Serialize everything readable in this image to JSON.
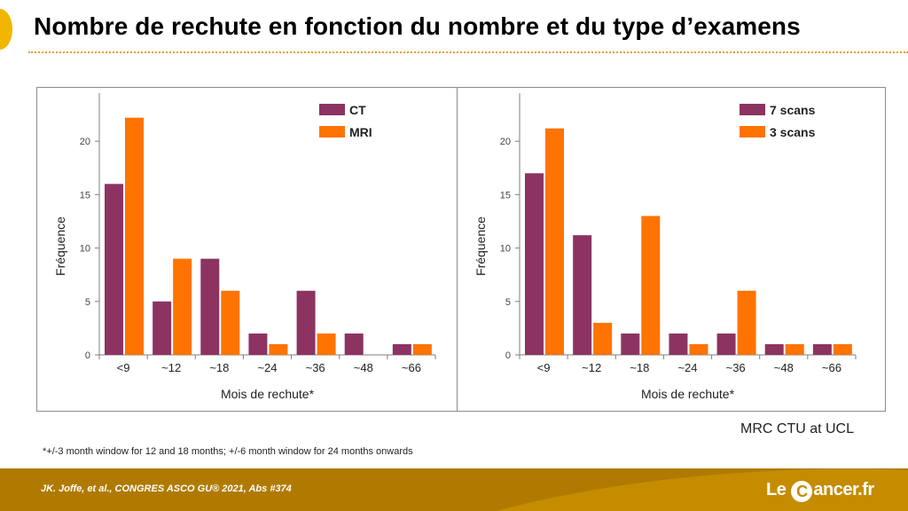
{
  "slide": {
    "title": "Nombre de rechute en fonction du nombre et du type d’examens",
    "source": "MRC CTU at UCL",
    "footnote": "*+/-3 month window for 12 and 18 months; +/-6 month window for 24 months onwards",
    "citation": "JK. Joffe, et al., CONGRES ASCO GU® 2021, Abs #374",
    "brand_prefix": "Le ",
    "brand_c": "C",
    "brand_suffix": "ancer.fr"
  },
  "colors": {
    "accent_yellow": "#f2b600",
    "footer": "#b07a00",
    "series_a": "#8c3361",
    "series_b": "#ff7300"
  },
  "chart_data": [
    {
      "type": "bar",
      "categories": [
        "<9",
        "~12",
        "~18",
        "~24",
        "~36",
        "~48",
        "~66"
      ],
      "series": [
        {
          "name": "CT",
          "values": [
            16,
            5,
            9,
            2,
            6,
            2,
            1
          ],
          "color": "#8c3361"
        },
        {
          "name": "MRI",
          "values": [
            22.2,
            9,
            6,
            1,
            2,
            0,
            1
          ],
          "color": "#ff7300"
        }
      ],
      "xlabel": "Mois de rechute*",
      "ylabel": "Fréquence",
      "ylim": [
        0,
        24
      ],
      "yticks": [
        0,
        5,
        10,
        15,
        20
      ],
      "legend_position": "top-right",
      "grid": false
    },
    {
      "type": "bar",
      "categories": [
        "<9",
        "~12",
        "~18",
        "~24",
        "~36",
        "~48",
        "~66"
      ],
      "series": [
        {
          "name": "7 scans",
          "values": [
            17,
            11.2,
            2,
            2,
            2,
            1,
            1
          ],
          "color": "#8c3361"
        },
        {
          "name": "3 scans",
          "values": [
            21.2,
            3,
            13,
            1,
            6,
            1,
            1
          ],
          "color": "#ff7300"
        }
      ],
      "xlabel": "Mois de rechute*",
      "ylabel": "Fréquence",
      "ylim": [
        0,
        24
      ],
      "yticks": [
        0,
        5,
        10,
        15,
        20
      ],
      "legend_position": "top-right",
      "grid": false
    }
  ]
}
